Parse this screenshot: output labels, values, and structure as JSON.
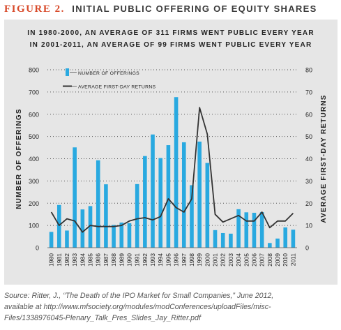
{
  "figure": {
    "label": "FIGURE 2.",
    "title": "INITIAL PUBLIC OFFERING OF EQUITY SHARES",
    "subtitle_lines": [
      "IN 1980-2000, AN AVERAGE OF 311 FIRMS WENT PUBLIC EVERY YEAR",
      "IN 2001-2011, AN AVERAGE OF 99 FIRMS WENT PUBLIC EVERY YEAR"
    ],
    "source_lines": [
      "Source: Ritter, J., “The Death of the IPO Market for Small Companies,” June 2012,",
      "available at http://www.mfsociety.org/modules/modConferences/uploadFiles/misc-",
      "Files/1338976045-Plenary_Talk_Pres_Slides_Jay_Ritter.pdf"
    ]
  },
  "colors": {
    "accent": "#d84a2a",
    "bars": "#29a9e0",
    "line": "#333333",
    "panel": "#e6e6e6"
  },
  "chart_data": {
    "type": "bar",
    "categories": [
      "1980",
      "1981",
      "1982",
      "1983",
      "1984",
      "1985",
      "1986",
      "1987",
      "1988",
      "1989",
      "1990",
      "1991",
      "1992",
      "1993",
      "1994",
      "1995",
      "1996",
      "1997",
      "1998",
      "1999",
      "2000",
      "2001",
      "2002",
      "2003",
      "2004",
      "2005",
      "2006",
      "2007",
      "2008",
      "2009",
      "2010",
      "2011"
    ],
    "series": [
      {
        "name": "NUMBER OF OFFERINGS",
        "kind": "bar",
        "axis": "left",
        "values": [
          71,
          192,
          77,
          451,
          172,
          187,
          393,
          285,
          102,
          113,
          110,
          286,
          412,
          509,
          403,
          461,
          677,
          474,
          281,
          477,
          381,
          79,
          66,
          63,
          173,
          159,
          157,
          160,
          21,
          41,
          91,
          81
        ]
      },
      {
        "name": "AVERAGE FIRST-DAY RETURNS",
        "kind": "line",
        "axis": "right",
        "values": [
          16,
          10,
          13,
          12,
          7,
          10,
          9.5,
          9.5,
          9.5,
          10,
          12,
          13,
          13.5,
          12.5,
          14,
          22,
          18,
          16,
          22,
          63,
          51,
          15,
          11.5,
          13,
          14.5,
          12,
          12,
          16,
          9,
          12,
          12,
          15.5
        ]
      }
    ],
    "ylabel_left": "NUMBER OF OFFERINGS",
    "ylabel_right": "AVERAGE FIRST-DAY RETURNS",
    "ylim_left": [
      0,
      800
    ],
    "ylim_right": [
      0,
      80
    ],
    "yticks_left": [
      "0",
      "100",
      "200",
      "300",
      "400",
      "500",
      "600",
      "700",
      "800"
    ],
    "yticks_right": [
      "0",
      "10",
      "20",
      "30",
      "40",
      "50",
      "60",
      "70",
      "80"
    ],
    "grid": "dotted-horizontal",
    "legend_position": "top-left"
  }
}
